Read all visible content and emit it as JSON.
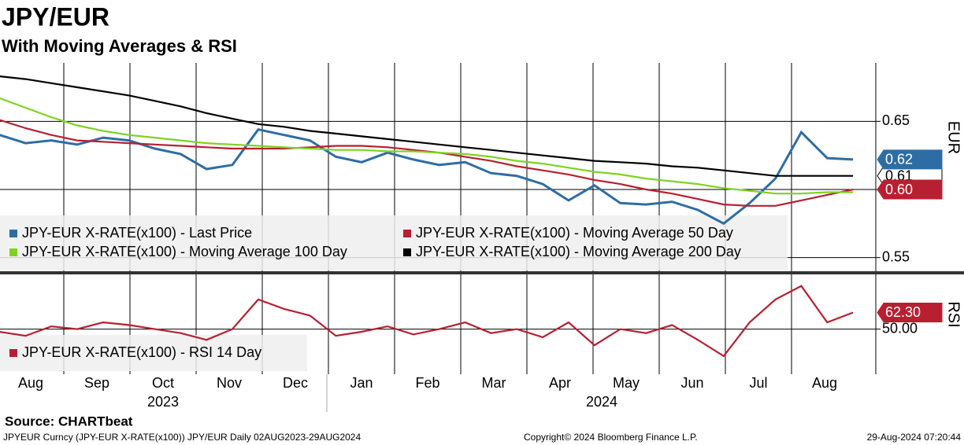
{
  "title": "JPY/EUR",
  "subtitle": "With Moving Averages & RSI",
  "x_axis": {
    "months": [
      "Aug",
      "Sep",
      "Oct",
      "Nov",
      "Dec",
      "Jan",
      "Feb",
      "Mar",
      "Apr",
      "May",
      "Jun",
      "Jul",
      "Aug"
    ],
    "years": [
      "2023",
      "2024"
    ]
  },
  "chart_data": [
    {
      "type": "line",
      "axis_label": "EUR",
      "ylim": [
        0.54,
        0.69
      ],
      "yticks": [
        0.55,
        {
          "value": 0.6,
          "label": "0.60"
        },
        0.65
      ],
      "grid": true,
      "series": [
        {
          "name": "JPY-EUR X-RATE(x100) - Last Price",
          "color": "#2e6da4",
          "values": [
            0.64,
            0.634,
            0.636,
            0.633,
            0.638,
            0.636,
            0.63,
            0.626,
            0.615,
            0.618,
            0.644,
            0.64,
            0.636,
            0.624,
            0.62,
            0.627,
            0.622,
            0.618,
            0.62,
            0.612,
            0.61,
            0.604,
            0.592,
            0.603,
            0.59,
            0.589,
            0.591,
            0.585,
            0.575,
            0.59,
            0.608,
            0.642,
            0.623,
            0.622
          ],
          "value_labels": [
            null,
            null,
            null,
            null,
            null,
            null,
            null,
            null,
            null,
            null,
            null,
            null,
            null,
            null,
            null,
            null,
            null,
            null,
            null,
            null,
            null,
            null,
            null,
            null,
            null,
            null,
            null,
            null,
            null,
            null,
            null,
            null,
            null,
            "0.62"
          ]
        },
        {
          "name": "JPY-EUR X-RATE(x100) - Moving Average 50 Day",
          "color": "#b81f30",
          "values": [
            0.651,
            0.645,
            0.64,
            0.636,
            0.635,
            0.634,
            0.633,
            0.632,
            0.631,
            0.63,
            0.63,
            0.63,
            0.631,
            0.632,
            0.632,
            0.631,
            0.629,
            0.627,
            0.624,
            0.621,
            0.617,
            0.614,
            0.611,
            0.607,
            0.604,
            0.6,
            0.597,
            0.593,
            0.589,
            0.588,
            0.588,
            0.592,
            0.596,
            0.6
          ],
          "value_labels": [
            null,
            null,
            null,
            null,
            null,
            null,
            null,
            null,
            null,
            null,
            null,
            null,
            null,
            null,
            null,
            null,
            null,
            null,
            null,
            null,
            null,
            null,
            null,
            null,
            null,
            null,
            null,
            null,
            null,
            null,
            null,
            null,
            null,
            "0.60"
          ]
        },
        {
          "name": "JPY-EUR X-RATE(x100) - Moving Average 100 Day",
          "color": "#7ed321",
          "values": [
            0.667,
            0.66,
            0.653,
            0.647,
            0.643,
            0.64,
            0.638,
            0.636,
            0.634,
            0.633,
            0.632,
            0.631,
            0.63,
            0.629,
            0.629,
            0.628,
            0.628,
            0.627,
            0.626,
            0.624,
            0.621,
            0.619,
            0.616,
            0.613,
            0.611,
            0.608,
            0.606,
            0.604,
            0.601,
            0.599,
            0.597,
            0.597,
            0.598,
            0.598
          ]
        },
        {
          "name": "JPY-EUR X-RATE(x100) - Moving Average 200 Day",
          "color": "#000000",
          "values": [
            0.683,
            0.681,
            0.678,
            0.675,
            0.672,
            0.669,
            0.665,
            0.661,
            0.656,
            0.652,
            0.648,
            0.646,
            0.643,
            0.641,
            0.639,
            0.637,
            0.635,
            0.633,
            0.631,
            0.629,
            0.627,
            0.625,
            0.623,
            0.621,
            0.62,
            0.619,
            0.617,
            0.616,
            0.614,
            0.612,
            0.61,
            0.61,
            0.61,
            0.61
          ],
          "value_labels": [
            null,
            null,
            null,
            null,
            null,
            null,
            null,
            null,
            null,
            null,
            null,
            null,
            null,
            null,
            null,
            null,
            null,
            null,
            null,
            null,
            null,
            null,
            null,
            null,
            null,
            null,
            null,
            null,
            null,
            null,
            null,
            null,
            null,
            "0.61"
          ]
        }
      ]
    },
    {
      "type": "line",
      "axis_label": "RSI",
      "ylim": [
        20,
        90
      ],
      "yticks": [
        {
          "value": 50,
          "label": "50.00"
        }
      ],
      "grid": true,
      "series": [
        {
          "name": "JPY-EUR X-RATE(x100) - RSI 14 Day",
          "color": "#b81f30",
          "values": [
            48,
            45,
            52,
            50,
            55,
            53,
            50,
            47,
            42,
            50,
            72,
            65,
            60,
            45,
            48,
            52,
            46,
            50,
            55,
            47,
            50,
            44,
            55,
            38,
            50,
            47,
            53,
            42,
            30,
            55,
            72,
            82,
            55,
            62.3
          ],
          "value_labels": [
            null,
            null,
            null,
            null,
            null,
            null,
            null,
            null,
            null,
            null,
            null,
            null,
            null,
            null,
            null,
            null,
            null,
            null,
            null,
            null,
            null,
            null,
            null,
            null,
            null,
            null,
            null,
            null,
            null,
            null,
            null,
            null,
            null,
            "62.30"
          ]
        }
      ]
    }
  ],
  "footer": {
    "source": "Source: CHARTbeat",
    "description": "JPYEUR Curncy (JPY-EUR X-RATE(x100)) JPY/EUR  Daily 02AUG2023-29AUG2024",
    "copyright": "Copyright© 2024 Bloomberg Finance L.P.",
    "timestamp": "29-Aug-2024 07:20:44"
  }
}
